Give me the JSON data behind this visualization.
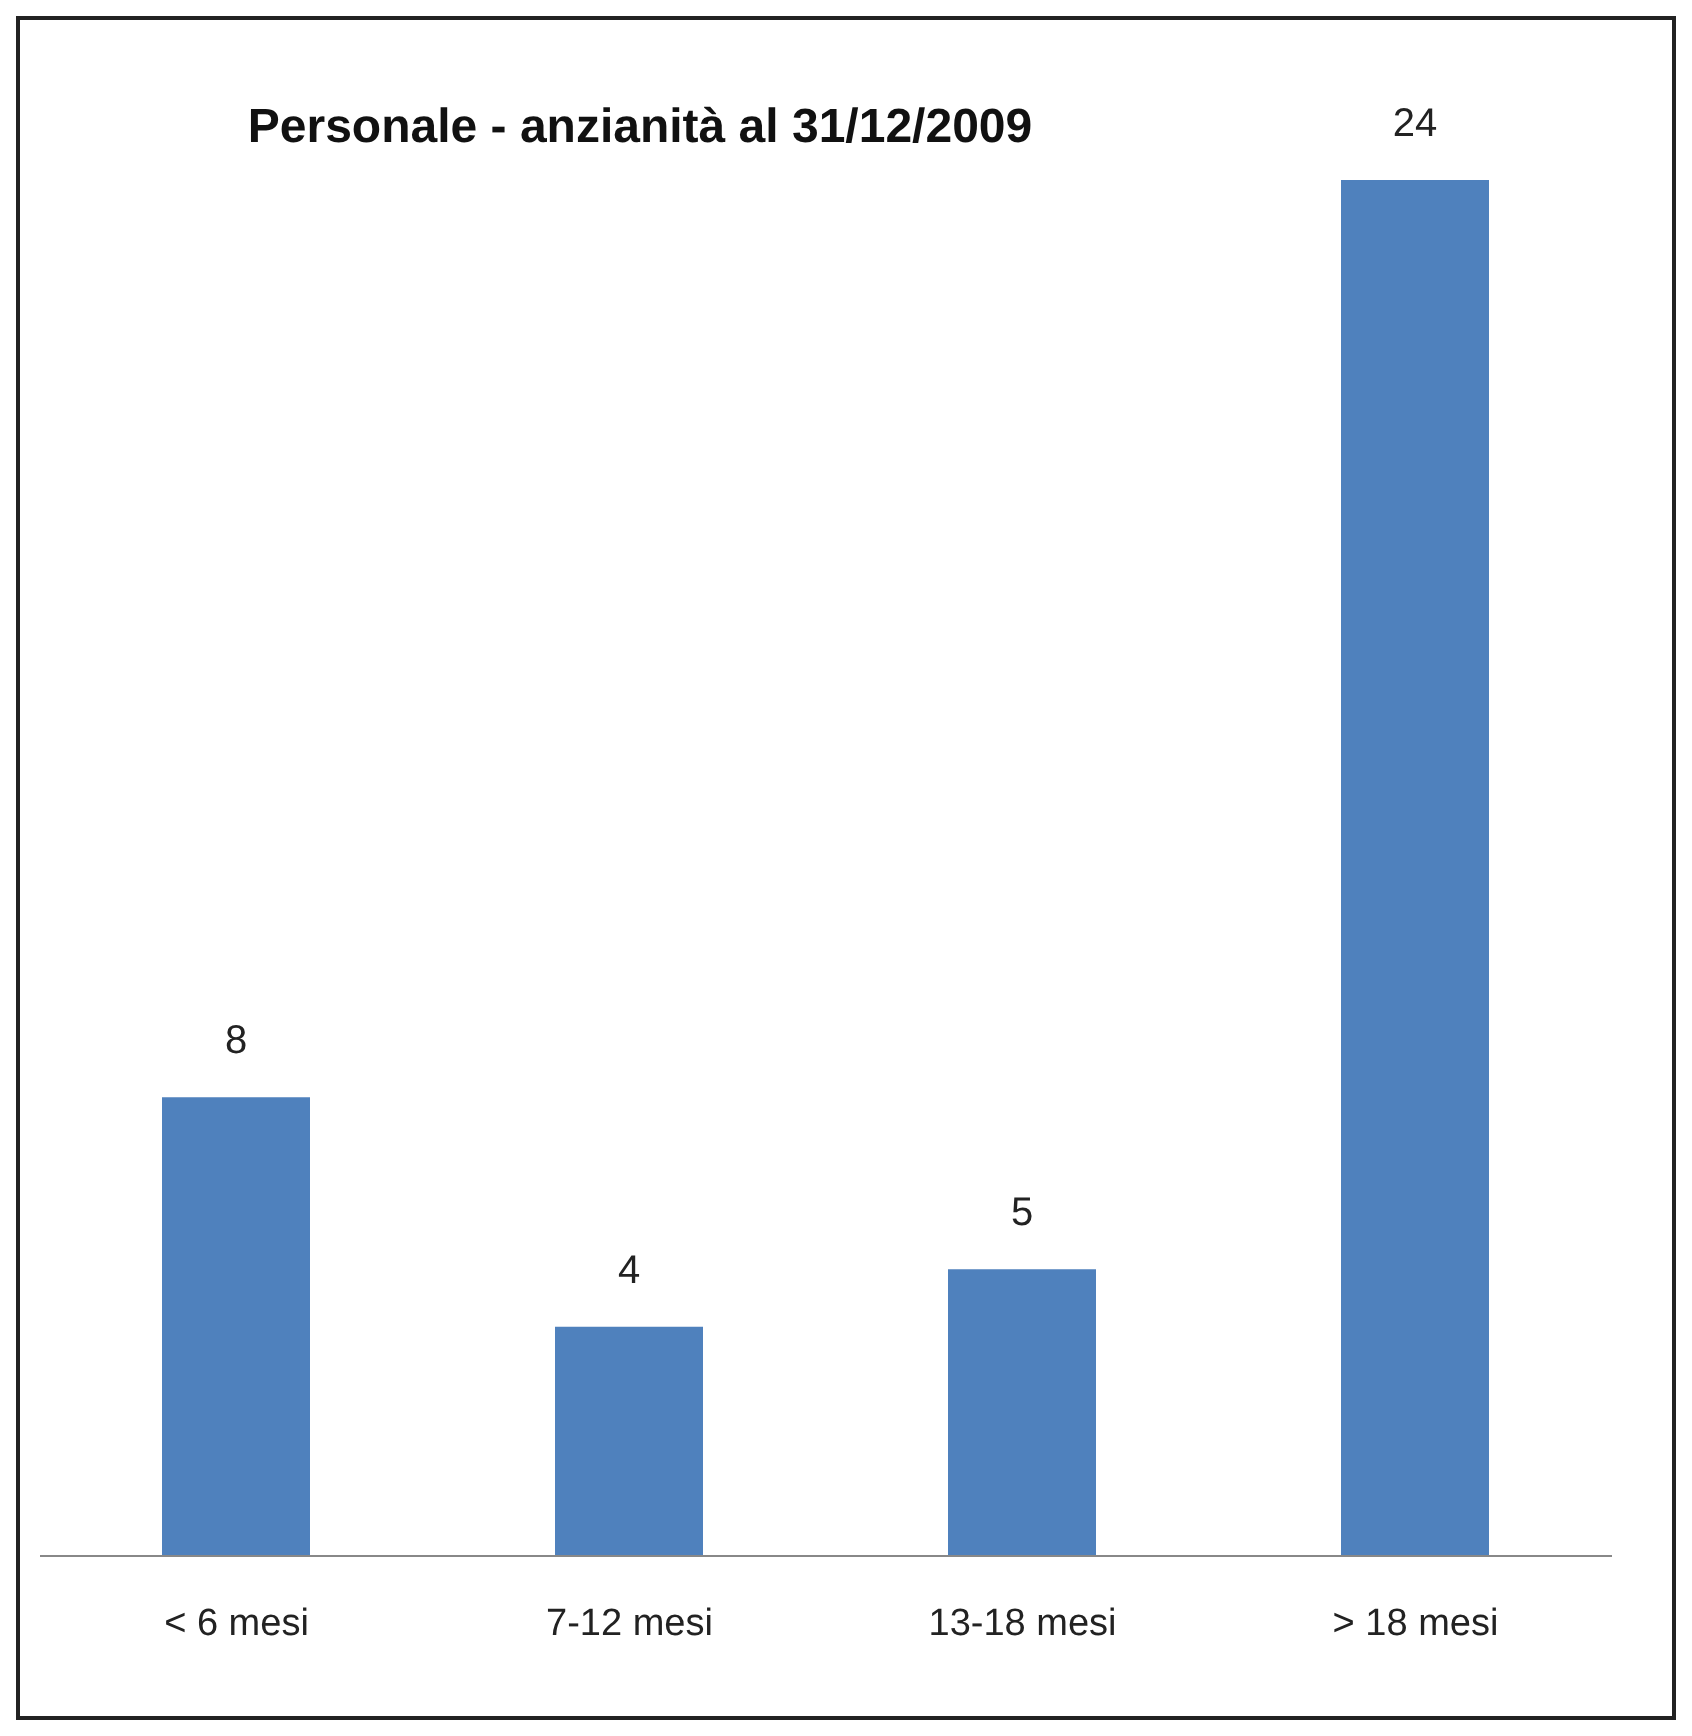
{
  "chart_data": {
    "type": "bar",
    "title": "Personale - anzianità al 31/12/2009",
    "categories": [
      "< 6 mesi",
      "7-12 mesi",
      "13-18 mesi",
      "> 18 mesi"
    ],
    "values": [
      8,
      4,
      5,
      24
    ],
    "color": "#4f81bd",
    "data_labels": true,
    "grid": false,
    "legend": false
  }
}
